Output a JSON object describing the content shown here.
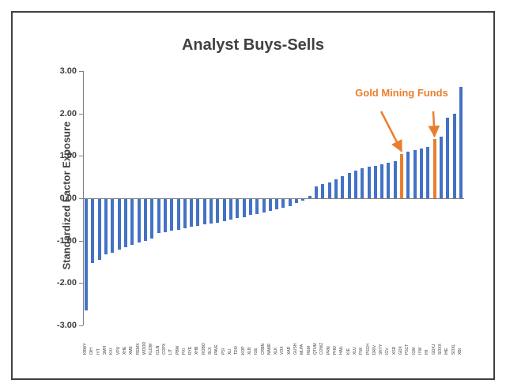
{
  "chart_data": {
    "type": "bar",
    "title": "Analyst Buys-Sells",
    "ylabel": "Standardized Factor Exposure",
    "xlabel": "",
    "ylim": [
      -3,
      3
    ],
    "yticks": [
      3.0,
      2.0,
      1.0,
      0.0,
      -1.0,
      -2.0,
      -3.0
    ],
    "ytick_labels": [
      "3.00",
      "2.00",
      "1.00",
      "0.00",
      "-1.00",
      "-2.00",
      "-3.00"
    ],
    "grid": "off",
    "legend": "none",
    "bar_color": "#4472C4",
    "highlight_color": "#E97F2E",
    "annotation": {
      "label": "Gold Mining Funds",
      "color": "#E97F2E",
      "points_to_indices": [
        48,
        53
      ]
    },
    "highlight_indices": [
      48,
      53
    ],
    "categories": [
      "KBWY",
      "OIH",
      "IYT",
      "SMH",
      "KXI",
      "VPU",
      "XHE",
      "XME",
      "REMX",
      "WOOD",
      "KLDW",
      "ICLN",
      "COPX",
      "LIT",
      "PBW",
      "PXI",
      "RYE",
      "XHB",
      "ROBO",
      "SLX",
      "PAVE",
      "PSI",
      "XLI",
      "TDIV",
      "KOP",
      "XLB",
      "IGE",
      "CRBN",
      "NANR",
      "XLK",
      "VOX",
      "XAR",
      "GUSH",
      "MLPA",
      "REM",
      "QTUM",
      "COWZ",
      "PRN",
      "PHO",
      "HAIL",
      "KIE",
      "XLU",
      "FIW",
      "PSCH",
      "DRIV",
      "SKYY",
      "IGV",
      "XSD",
      "GDX",
      "PSCT",
      "IGM",
      "IYW",
      "IHI",
      "GDXJ",
      "SOXX",
      "IHE",
      "SOXL",
      "XBI"
    ],
    "values": [
      -2.65,
      -1.52,
      -1.45,
      -1.33,
      -1.28,
      -1.22,
      -1.15,
      -1.1,
      -1.05,
      -1.0,
      -0.95,
      -0.82,
      -0.8,
      -0.77,
      -0.74,
      -0.71,
      -0.68,
      -0.65,
      -0.62,
      -0.6,
      -0.57,
      -0.54,
      -0.5,
      -0.47,
      -0.44,
      -0.4,
      -0.37,
      -0.33,
      -0.3,
      -0.26,
      -0.22,
      -0.18,
      -0.12,
      -0.06,
      0.05,
      0.28,
      0.33,
      0.38,
      0.44,
      0.52,
      0.6,
      0.65,
      0.7,
      0.74,
      0.77,
      0.8,
      0.84,
      0.88,
      1.05,
      1.1,
      1.14,
      1.18,
      1.22,
      1.4,
      1.46,
      1.9,
      2.0,
      2.62
    ]
  }
}
